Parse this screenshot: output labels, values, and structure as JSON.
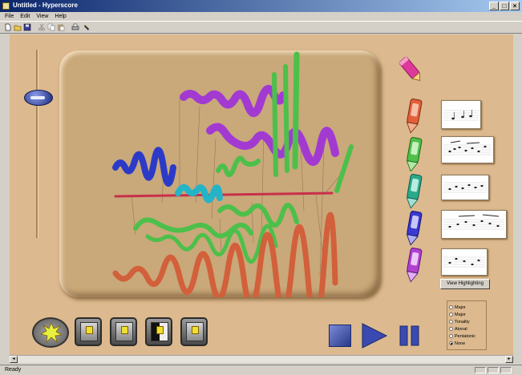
{
  "window": {
    "title": "Untitled - Hyperscore"
  },
  "menu": [
    "File",
    "Edit",
    "View",
    "Help"
  ],
  "toolbar": {
    "icons": [
      "new-icon",
      "open-icon",
      "save-icon",
      "cut-icon",
      "copy-icon",
      "paste-icon",
      "print-icon",
      "help-icon"
    ]
  },
  "pencils": [
    {
      "name": "pencil-tool",
      "color": "#e0389a"
    },
    {
      "name": "motif-pencil-1",
      "color": "#e2603a"
    },
    {
      "name": "motif-pencil-2",
      "color": "#4fc04a"
    },
    {
      "name": "motif-pencil-3",
      "color": "#2aaa8a"
    },
    {
      "name": "motif-pencil-4",
      "color": "#3a3ad0"
    },
    {
      "name": "motif-pencil-5",
      "color": "#b040d0"
    }
  ],
  "strokes": {
    "colors": {
      "purple": "#a23ad2",
      "green": "#4cc04a",
      "blue": "#2c3ac8",
      "cyan": "#24b4c8",
      "orange": "#d2603a",
      "red": "#c8304a"
    }
  },
  "view_button": {
    "label": "View Highlighting"
  },
  "harmony_options": [
    {
      "label": "Major",
      "selected": false
    },
    {
      "label": "Major",
      "selected": false
    },
    {
      "label": "Tonality",
      "selected": false
    },
    {
      "label": "Atonal",
      "selected": false
    },
    {
      "label": "Pentatonic",
      "selected": false
    },
    {
      "label": "None",
      "selected": true
    }
  ],
  "transport": {
    "stop": "stop-icon",
    "play": "play-icon",
    "pause": "pause-icon"
  },
  "status": {
    "text": "Ready"
  }
}
